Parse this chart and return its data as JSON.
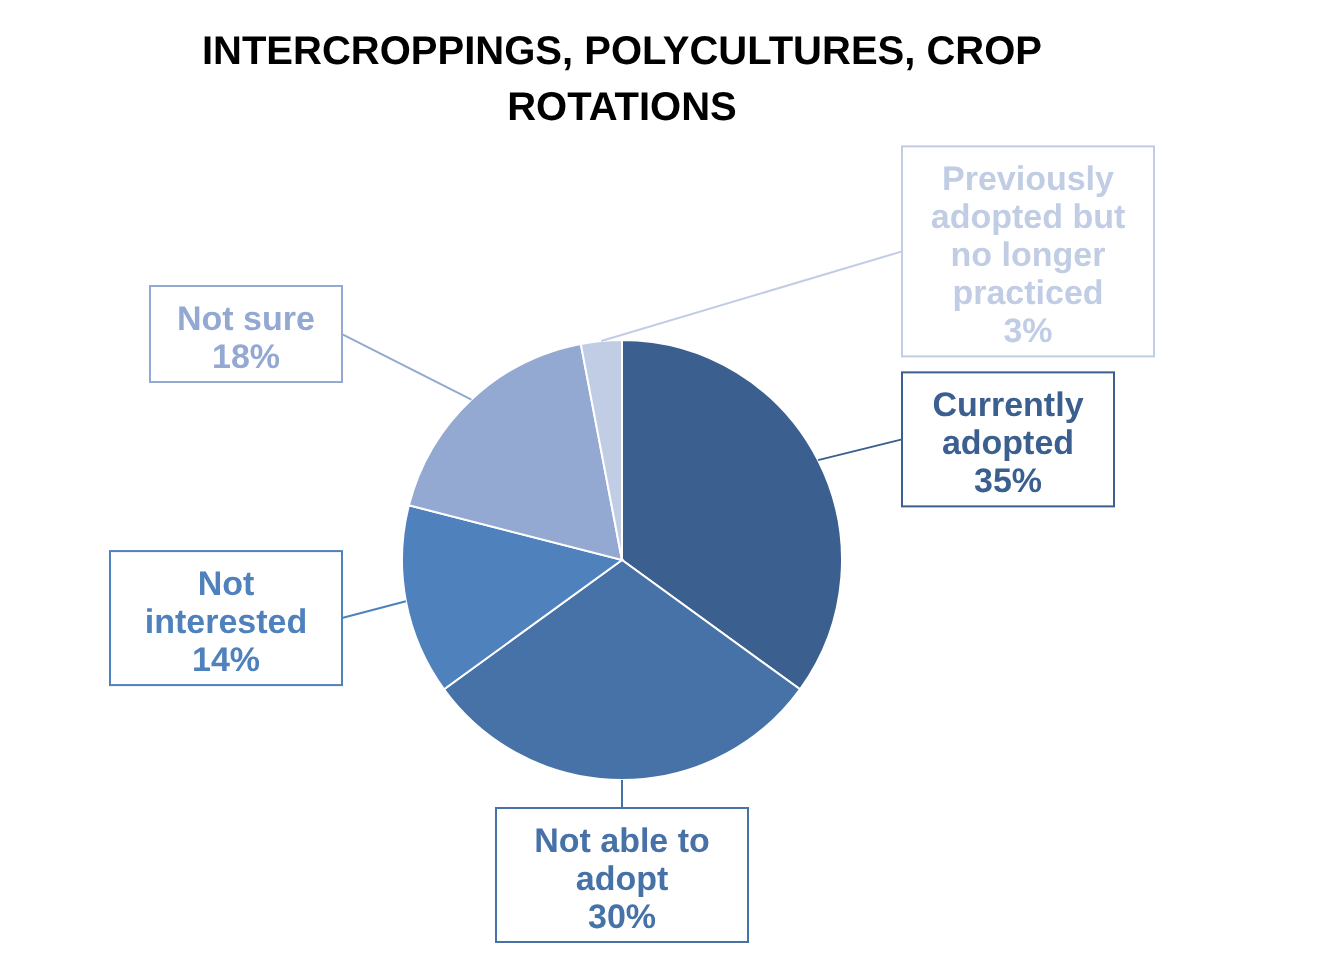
{
  "chart_data": {
    "type": "pie",
    "title": "INTERCROPPINGS, POLYCULTURES, CROP ROTATIONS",
    "categories": [
      "Currently adopted",
      "Not able to adopt",
      "Not interested",
      "Not sure",
      "Previously adopted but no longer practiced"
    ],
    "values": [
      35,
      30,
      14,
      18,
      3
    ],
    "value_labels": [
      "35%",
      "30%",
      "14%",
      "18%",
      "3%"
    ],
    "colors": [
      "#3b5f8e",
      "#4672a8",
      "#4f81bd",
      "#93a9d1",
      "#c0cde5"
    ],
    "legend": false
  }
}
